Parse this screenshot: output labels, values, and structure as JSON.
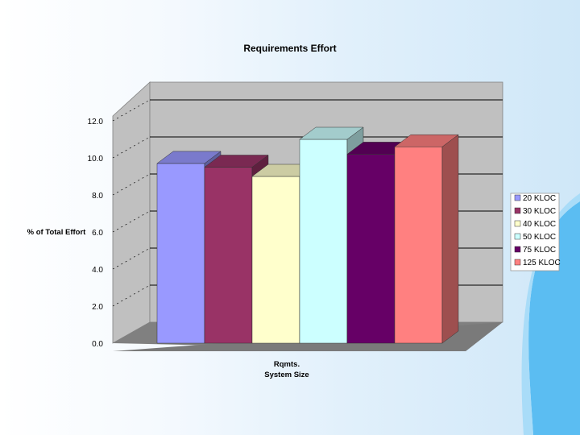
{
  "chart_data": {
    "type": "bar",
    "title": "Requirements Effort",
    "ylabel": "% of Total Effort",
    "xlabel": "System Size",
    "categories": [
      "Rqmts."
    ],
    "ylim": [
      0,
      12
    ],
    "yticks": [
      "0.0",
      "2.0",
      "4.0",
      "6.0",
      "8.0",
      "10.0",
      "12.0"
    ],
    "grid": true,
    "legend_position": "right",
    "series": [
      {
        "name": "20 KLOC",
        "values": [
          9.7
        ],
        "color": "#9999ff"
      },
      {
        "name": "30 KLOC",
        "values": [
          9.5
        ],
        "color": "#993366"
      },
      {
        "name": "40 KLOC",
        "values": [
          9.0
        ],
        "color": "#ffffcc"
      },
      {
        "name": "50 KLOC",
        "values": [
          11.0
        ],
        "color": "#ccffff"
      },
      {
        "name": "75 KLOC",
        "values": [
          10.2
        ],
        "color": "#660066"
      },
      {
        "name": "125 KLOC",
        "values": [
          10.6
        ],
        "color": "#ff8080"
      }
    ]
  }
}
